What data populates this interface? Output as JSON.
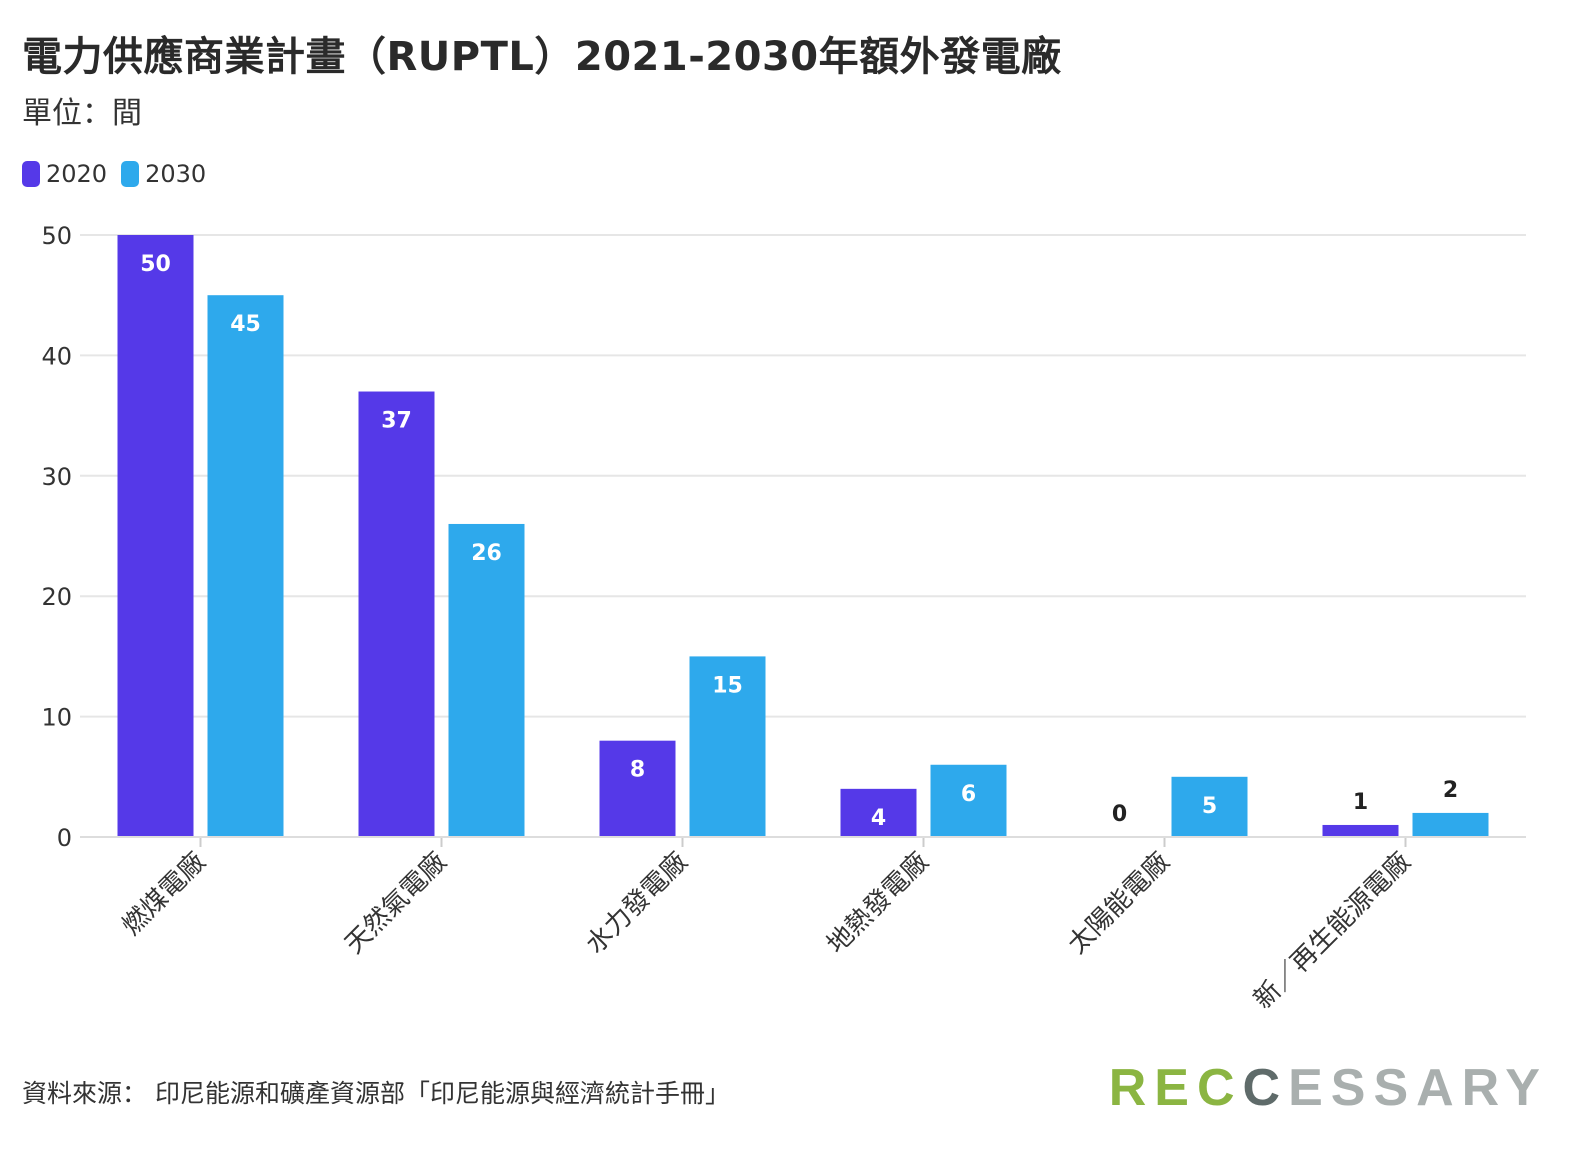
{
  "header": {
    "title": "電力供應商業計畫（RUPTL）2021-2030年額外發電廠",
    "subtitle": "單位：間"
  },
  "footer": {
    "source": "資料來源： 印尼能源和礦產資源部「印尼能源與經濟統計手冊」",
    "logo_part1": "REC",
    "logo_part2": "C",
    "logo_part3": "ESSARY"
  },
  "colors": {
    "series_2020": "#5539e8",
    "series_2030": "#2ea9ec",
    "grid": "#e6e6e6",
    "axis_text": "#333333"
  },
  "chart_data": {
    "type": "bar",
    "categories": [
      "燃煤電廠",
      "天然氣電廠",
      "水力發電廠",
      "地熱發電廠",
      "太陽能電廠",
      "新／再生能源電廠"
    ],
    "series": [
      {
        "name": "2020",
        "values": [
          50,
          37,
          8,
          4,
          0,
          1
        ]
      },
      {
        "name": "2030",
        "values": [
          45,
          26,
          15,
          6,
          5,
          2
        ]
      }
    ],
    "ylim": [
      0,
      50
    ],
    "yticks": [
      0,
      10,
      20,
      30,
      40,
      50
    ],
    "grid": true,
    "legend": "top-left"
  }
}
